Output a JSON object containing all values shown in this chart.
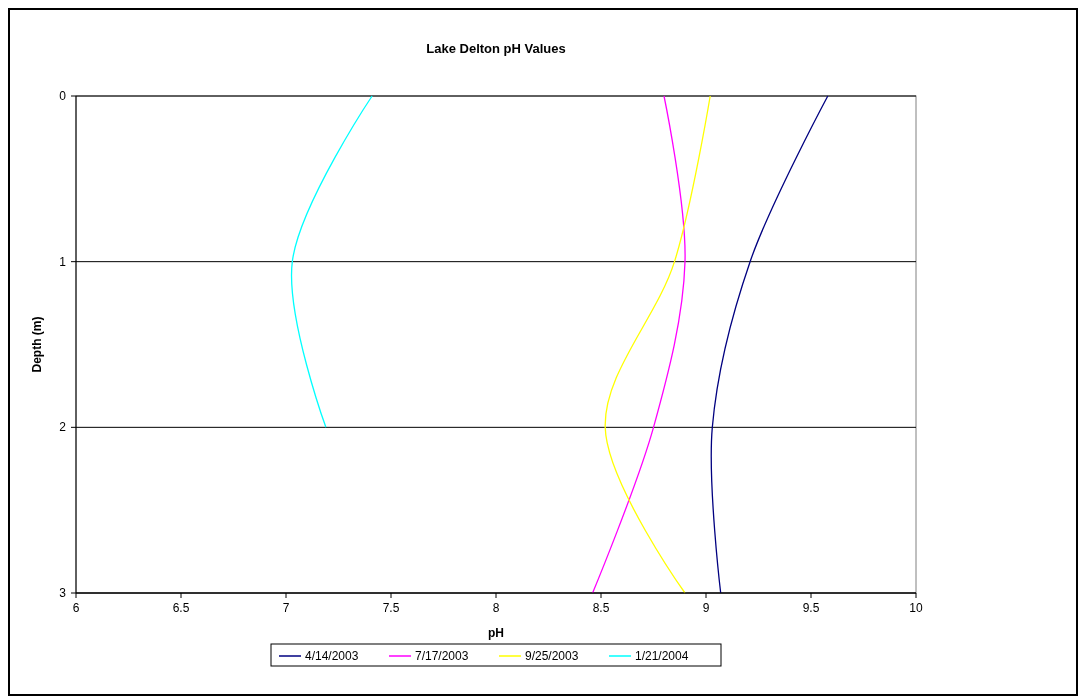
{
  "chart_data": {
    "type": "line",
    "title": "Lake Delton pH Values",
    "xlabel": "pH",
    "ylabel": "Depth (m)",
    "xlim": [
      6,
      10
    ],
    "xticks": [
      6,
      6.5,
      7,
      7.5,
      8,
      8.5,
      9,
      9.5,
      10
    ],
    "ylim": [
      3,
      0
    ],
    "yticks": [
      0,
      1,
      2,
      3
    ],
    "grid": "y",
    "legend": "bottom",
    "marker": "none",
    "line_style": "solid",
    "series": [
      {
        "name": "4/14/2003",
        "color": "#000080",
        "x": [
          9.58,
          9.21,
          9.03,
          9.07
        ],
        "values": [
          0,
          1,
          2,
          3
        ]
      },
      {
        "name": "7/17/2003",
        "color": "#ff00ff",
        "x": [
          8.8,
          8.9,
          8.75,
          8.46
        ],
        "values": [
          0,
          1,
          2,
          3
        ]
      },
      {
        "name": "9/25/2003",
        "color": "#ffff00",
        "x": [
          9.02,
          8.85,
          8.52,
          8.9
        ],
        "values": [
          0,
          1,
          2,
          3
        ]
      },
      {
        "name": "1/21/2004",
        "color": "#00ffff",
        "x": [
          7.41,
          7.03,
          7.19
        ],
        "values": [
          0,
          1,
          2
        ]
      }
    ]
  }
}
